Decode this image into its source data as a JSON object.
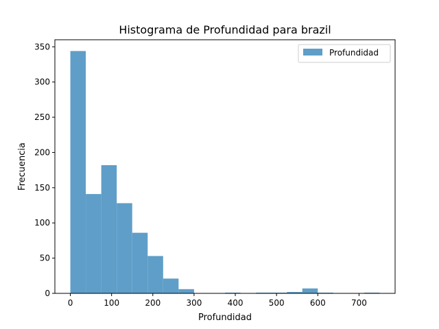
{
  "chart_data": {
    "type": "bar",
    "title": "Histograma de Profundidad para brazil",
    "xlabel": "Profundidad",
    "ylabel": "Frecuencia",
    "xlim": [
      -37.5,
      787.5
    ],
    "ylim": [
      0,
      360
    ],
    "xticks": [
      0,
      100,
      200,
      300,
      400,
      500,
      600,
      700
    ],
    "yticks": [
      0,
      50,
      100,
      150,
      200,
      250,
      300,
      350
    ],
    "legend": {
      "label": "Profundidad",
      "position": "upper-right"
    },
    "bar_color": "#5f9ec8",
    "bins": [
      {
        "x0": 0,
        "x1": 37.5,
        "count": 344
      },
      {
        "x0": 37.5,
        "x1": 75,
        "count": 141
      },
      {
        "x0": 75,
        "x1": 112.5,
        "count": 182
      },
      {
        "x0": 112.5,
        "x1": 150,
        "count": 128
      },
      {
        "x0": 150,
        "x1": 187.5,
        "count": 86
      },
      {
        "x0": 187.5,
        "x1": 225,
        "count": 53
      },
      {
        "x0": 225,
        "x1": 262.5,
        "count": 21
      },
      {
        "x0": 262.5,
        "x1": 300,
        "count": 6
      },
      {
        "x0": 300,
        "x1": 337.5,
        "count": 0
      },
      {
        "x0": 337.5,
        "x1": 375,
        "count": 0
      },
      {
        "x0": 375,
        "x1": 412.5,
        "count": 1
      },
      {
        "x0": 412.5,
        "x1": 450,
        "count": 0
      },
      {
        "x0": 450,
        "x1": 487.5,
        "count": 1
      },
      {
        "x0": 487.5,
        "x1": 525,
        "count": 1
      },
      {
        "x0": 525,
        "x1": 562.5,
        "count": 2
      },
      {
        "x0": 562.5,
        "x1": 600,
        "count": 7
      },
      {
        "x0": 600,
        "x1": 637.5,
        "count": 1
      },
      {
        "x0": 637.5,
        "x1": 675,
        "count": 0
      },
      {
        "x0": 675,
        "x1": 712.5,
        "count": 0
      },
      {
        "x0": 712.5,
        "x1": 750,
        "count": 1
      }
    ]
  }
}
